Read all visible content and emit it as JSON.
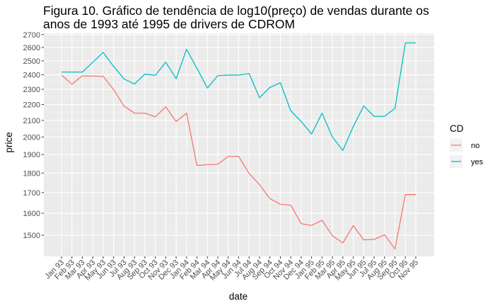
{
  "chart_data": {
    "type": "line",
    "title_lines": [
      "Figura 10. Gráfico de tendência de log10(preço) de vendas durante os",
      "anos de 1993 até 1995 de drivers de CDROM"
    ],
    "xlabel": "date",
    "ylabel": "price",
    "y_scale": "log10",
    "ylim": [
      1410,
      2710
    ],
    "y_ticks": [
      1500,
      1600,
      1700,
      1800,
      1900,
      2000,
      2100,
      2200,
      2300,
      2400,
      2500,
      2600,
      2700
    ],
    "categories": [
      "Jan 93",
      "Feb 93",
      "Mar 93",
      "Apr 93",
      "May 93",
      "Jun 93",
      "Jul 93",
      "Aug 93",
      "Sep 93",
      "Oct 93",
      "Nov 93",
      "Dec 93",
      "Jan 94",
      "Feb 94",
      "Mar 94",
      "Apr 94",
      "May 94",
      "Jun 94",
      "Jul 94",
      "Aug 94",
      "Sep 94",
      "Oct 94",
      "Nov 94",
      "Dec 94",
      "Jan 95",
      "Feb 95",
      "Mar 95",
      "Apr 95",
      "May 95",
      "Jun 95",
      "Jul 95",
      "Aug 95",
      "Sep 95",
      "Oct 95",
      "Nov 95"
    ],
    "legend": {
      "title": "CD",
      "position": "right"
    },
    "grid": true,
    "series": [
      {
        "name": "no",
        "color": "#F8766D",
        "values": [
          2398,
          2335,
          2393,
          2391,
          2389,
          2298,
          2190,
          2145,
          2145,
          2122,
          2185,
          2093,
          2145,
          1840,
          1845,
          1847,
          1890,
          1890,
          1798,
          1740,
          1670,
          1643,
          1638,
          1552,
          1544,
          1567,
          1498,
          1467,
          1543,
          1480,
          1482,
          1502,
          1441,
          1690,
          1690
        ]
      },
      {
        "name": "yes",
        "color": "#00BFC4",
        "values": [
          2419,
          2419,
          2419,
          2490,
          2562,
          2460,
          2371,
          2336,
          2405,
          2396,
          2490,
          2373,
          2586,
          2445,
          2309,
          2394,
          2398,
          2398,
          2409,
          2244,
          2313,
          2345,
          2160,
          2093,
          2018,
          2145,
          2000,
          1923,
          2063,
          2190,
          2125,
          2125,
          2175,
          2635,
          2635
        ]
      }
    ]
  }
}
